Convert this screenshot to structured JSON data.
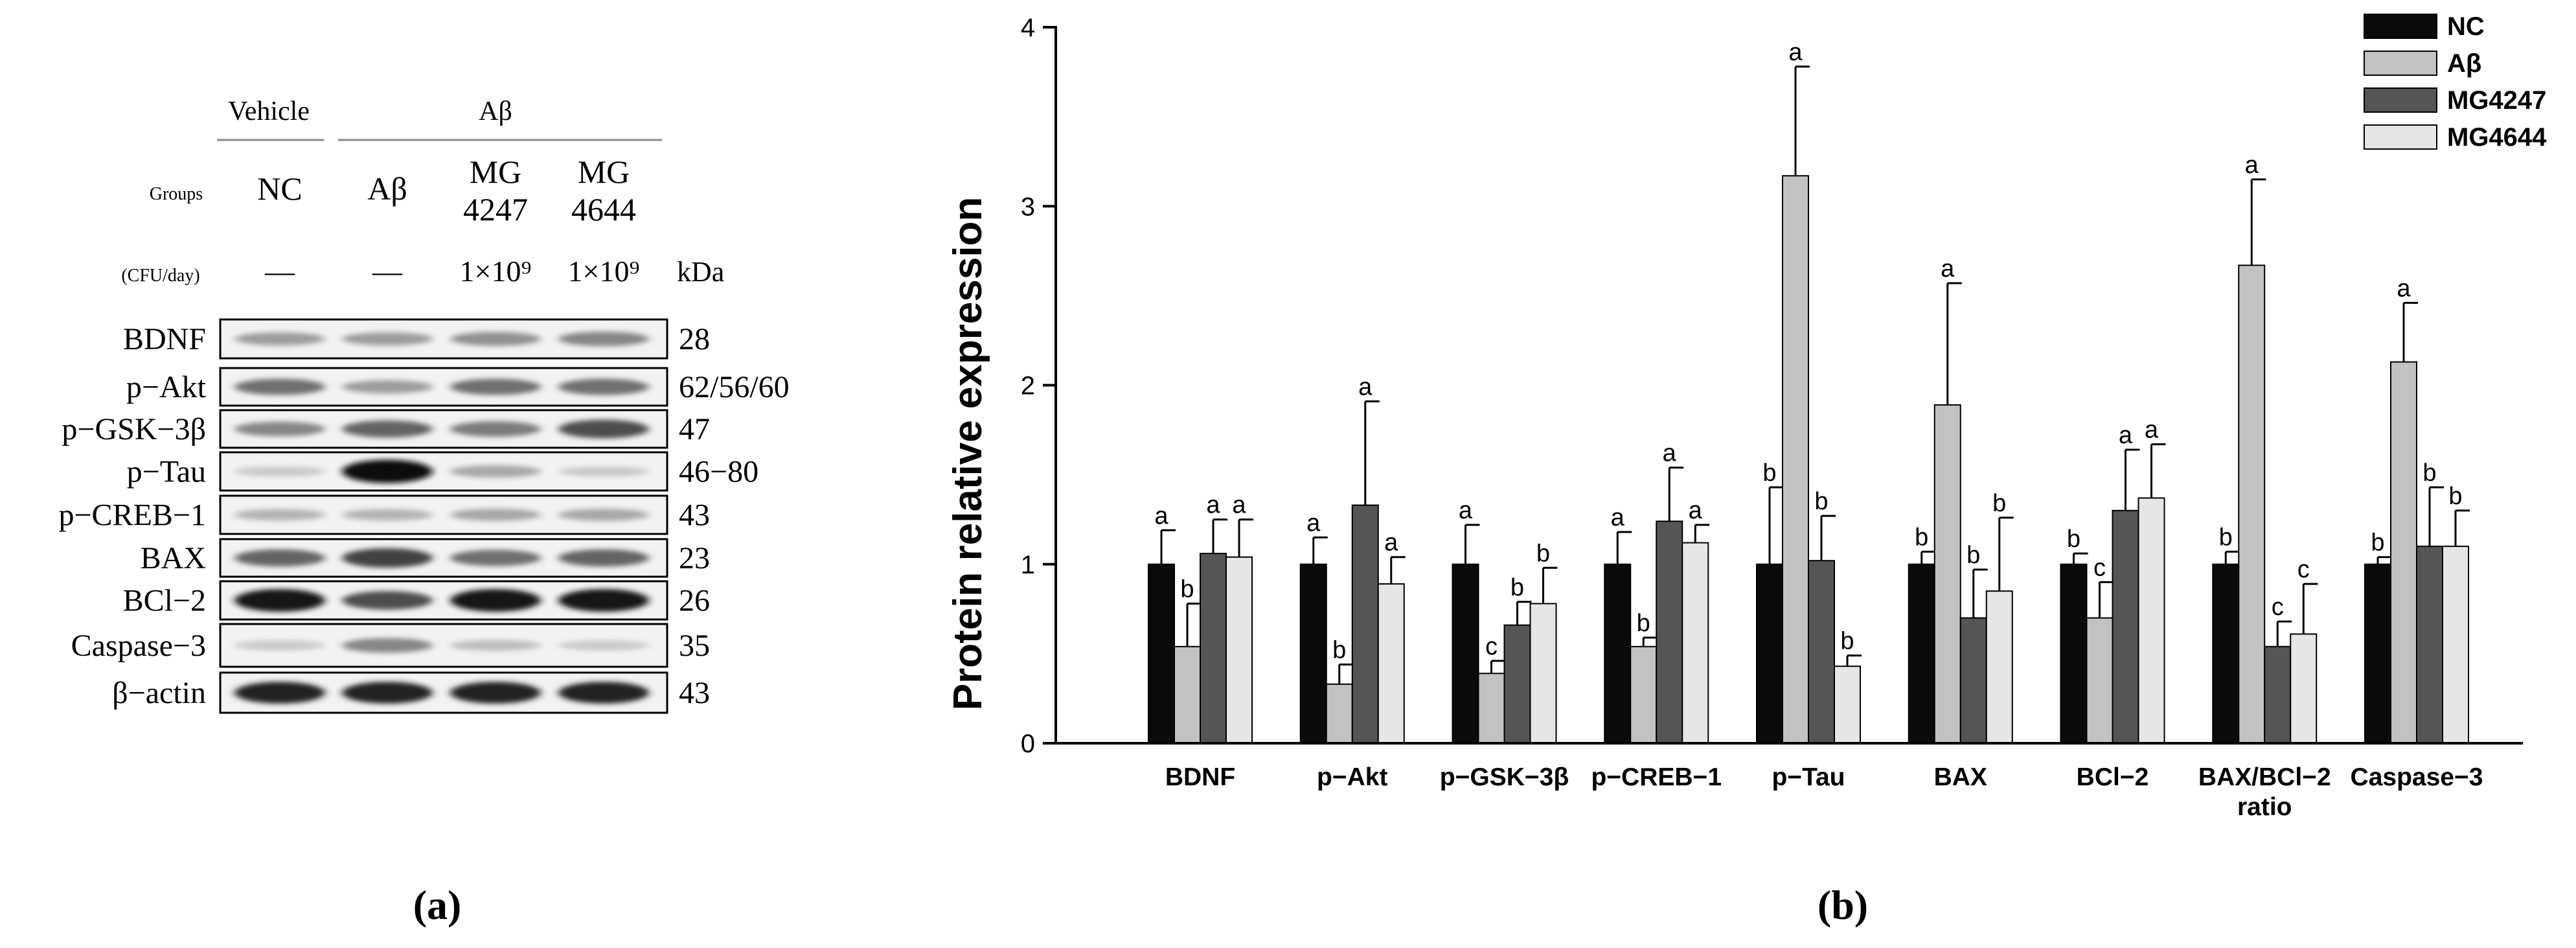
{
  "panel_a": {
    "label": "(a)",
    "vehicle_label": "Vehicle",
    "treatment_label": "Aβ",
    "groups_label": "Groups",
    "dose_label": "(CFU/day)",
    "kda_label": "kDa",
    "groups": [
      {
        "line1": "NC",
        "line2": "",
        "dose": "—"
      },
      {
        "line1": "Aβ",
        "line2": "",
        "dose": "—"
      },
      {
        "line1": "MG",
        "line2": "4247",
        "dose": "1×10⁹"
      },
      {
        "line1": "MG",
        "line2": "4644",
        "dose": "1×10⁹"
      }
    ],
    "proteins": [
      {
        "name": "BDNF",
        "kda": "28"
      },
      {
        "name": "p−Akt",
        "kda": "62/56/60"
      },
      {
        "name": "p−GSK−3β",
        "kda": "47"
      },
      {
        "name": "p−Tau",
        "kda": "46−80"
      },
      {
        "name": "p−CREB−1",
        "kda": "43"
      },
      {
        "name": "BAX",
        "kda": "23"
      },
      {
        "name": "BCl−2",
        "kda": "26"
      },
      {
        "name": "Caspase−3",
        "kda": "35"
      },
      {
        "name": "β−actin",
        "kda": "43"
      }
    ],
    "band_intensity": [
      [
        0.35,
        0.35,
        0.4,
        0.45
      ],
      [
        0.55,
        0.35,
        0.55,
        0.55
      ],
      [
        0.45,
        0.6,
        0.5,
        0.7
      ],
      [
        0.15,
        1.0,
        0.3,
        0.15
      ],
      [
        0.25,
        0.25,
        0.3,
        0.3
      ],
      [
        0.6,
        0.75,
        0.55,
        0.6
      ],
      [
        0.95,
        0.7,
        0.95,
        0.95
      ],
      [
        0.15,
        0.45,
        0.2,
        0.15
      ],
      [
        0.9,
        0.9,
        0.9,
        0.9
      ]
    ]
  },
  "panel_b": {
    "label": "(b)"
  },
  "chart_data": {
    "type": "bar",
    "title": "",
    "xlabel": "",
    "ylabel": "Protein relative expression",
    "ylim": [
      0,
      4
    ],
    "yticks": [
      "0",
      "1",
      "2",
      "3",
      "4"
    ],
    "grid": false,
    "legend_position": "top-right",
    "categories": [
      "BDNF",
      "p−Akt",
      "p−GSK−3β",
      "p−CREB−1",
      "p−Tau",
      "BAX",
      "BCl−2",
      "BAX/BCl−2\nratio",
      "Caspase−3"
    ],
    "series": [
      {
        "name": "NC",
        "color": "#0a0a0a",
        "values": [
          1.0,
          1.0,
          1.0,
          1.0,
          1.0,
          1.0,
          1.0,
          1.0,
          1.0
        ],
        "errors": [
          0.19,
          0.15,
          0.22,
          0.18,
          0.43,
          0.07,
          0.06,
          0.07,
          0.04
        ],
        "letters": [
          "a",
          "a",
          "a",
          "a",
          "b",
          "b",
          "b",
          "b",
          "b"
        ]
      },
      {
        "name": "Aβ",
        "color": "#c2c2c2",
        "values": [
          0.54,
          0.33,
          0.39,
          0.54,
          3.17,
          1.89,
          0.7,
          2.67,
          2.13
        ],
        "errors": [
          0.24,
          0.11,
          0.07,
          0.05,
          0.61,
          0.68,
          0.2,
          0.48,
          0.33
        ],
        "letters": [
          "b",
          "b",
          "c",
          "b",
          "a",
          "a",
          "c",
          "a",
          "a"
        ]
      },
      {
        "name": "MG4247",
        "color": "#555555",
        "values": [
          1.06,
          1.33,
          0.66,
          1.24,
          1.02,
          0.7,
          1.3,
          0.54,
          1.1
        ],
        "errors": [
          0.19,
          0.58,
          0.13,
          0.3,
          0.25,
          0.27,
          0.34,
          0.14,
          0.33
        ],
        "letters": [
          "a",
          "a",
          "b",
          "a",
          "b",
          "b",
          "a",
          "c",
          "b"
        ]
      },
      {
        "name": "MG4644",
        "color": "#e6e6e6",
        "values": [
          1.04,
          0.89,
          0.78,
          1.12,
          0.43,
          0.85,
          1.37,
          0.61,
          1.1
        ],
        "errors": [
          0.21,
          0.15,
          0.2,
          0.1,
          0.06,
          0.41,
          0.3,
          0.28,
          0.2
        ],
        "letters": [
          "a",
          "a",
          "b",
          "a",
          "b",
          "b",
          "a",
          "c",
          "b"
        ]
      }
    ]
  }
}
